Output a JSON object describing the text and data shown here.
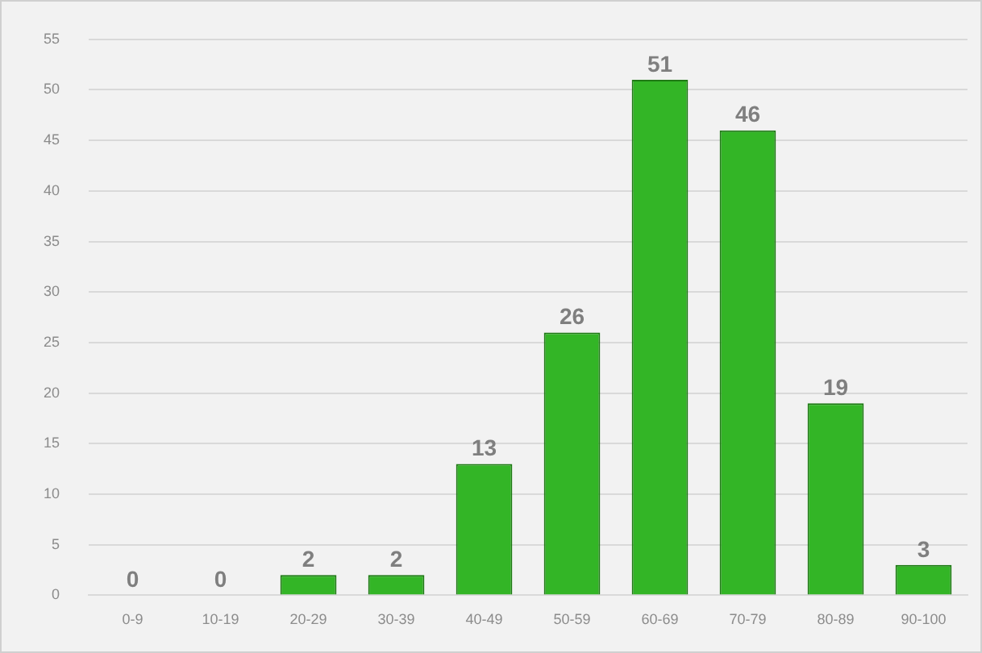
{
  "chart_data": {
    "type": "bar",
    "categories": [
      "0-9",
      "10-19",
      "20-29",
      "30-39",
      "40-49",
      "50-59",
      "60-69",
      "70-79",
      "80-89",
      "90-100"
    ],
    "values": [
      0,
      0,
      2,
      2,
      13,
      26,
      51,
      46,
      19,
      3
    ],
    "color": "#33b526",
    "ylim": [
      0,
      55
    ],
    "yticks": [
      0,
      5,
      10,
      15,
      20,
      25,
      30,
      35,
      40,
      45,
      50,
      55
    ],
    "grid": "y",
    "data_labels": true
  }
}
